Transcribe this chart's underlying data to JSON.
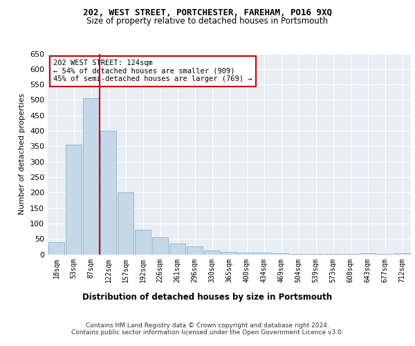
{
  "title1": "202, WEST STREET, PORTCHESTER, FAREHAM, PO16 9XQ",
  "title2": "Size of property relative to detached houses in Portsmouth",
  "xlabel": "Distribution of detached houses by size in Portsmouth",
  "ylabel": "Number of detached properties",
  "footer1": "Contains HM Land Registry data © Crown copyright and database right 2024.",
  "footer2": "Contains public sector information licensed under the Open Government Licence v3.0.",
  "annotation_line1": "202 WEST STREET: 124sqm",
  "annotation_line2": "← 54% of detached houses are smaller (909)",
  "annotation_line3": "45% of semi-detached houses are larger (769) →",
  "bar_labels": [
    "18sqm",
    "53sqm",
    "87sqm",
    "122sqm",
    "157sqm",
    "192sqm",
    "226sqm",
    "261sqm",
    "296sqm",
    "330sqm",
    "365sqm",
    "400sqm",
    "434sqm",
    "469sqm",
    "504sqm",
    "539sqm",
    "573sqm",
    "608sqm",
    "643sqm",
    "677sqm",
    "712sqm"
  ],
  "bar_values": [
    40,
    355,
    505,
    400,
    200,
    80,
    55,
    35,
    25,
    12,
    8,
    5,
    5,
    3,
    2,
    2,
    1,
    1,
    4,
    1,
    4
  ],
  "bar_color": "#c5d8e8",
  "bar_edge_color": "#8ab0cc",
  "vline_x_idx": 3,
  "vline_color": "#cc0000",
  "annotation_box_color": "#cc0000",
  "ylim": [
    0,
    650
  ],
  "yticks": [
    0,
    50,
    100,
    150,
    200,
    250,
    300,
    350,
    400,
    450,
    500,
    550,
    600,
    650
  ],
  "bg_color": "#e8eef4",
  "fig_bg_color": "#ffffff"
}
